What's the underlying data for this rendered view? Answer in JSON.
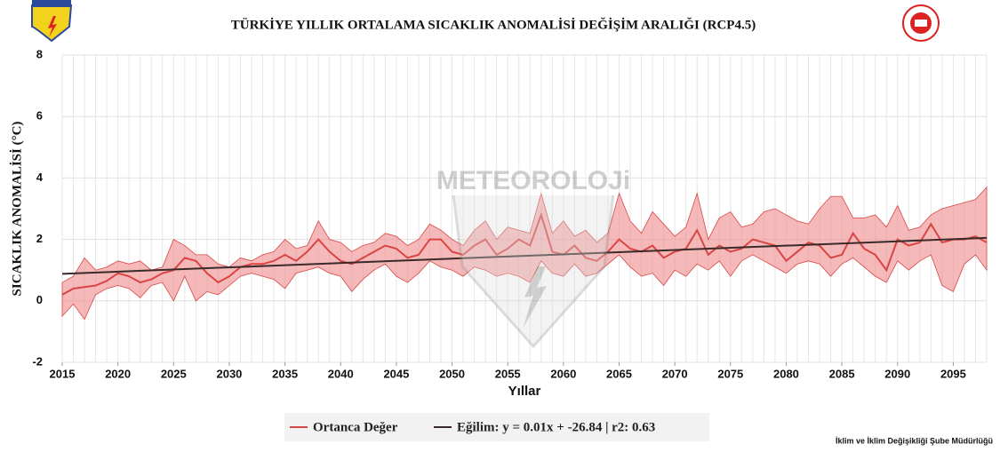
{
  "chart_data": {
    "type": "line",
    "title": "TÜRKİYE YILLIK ORTALAMA SICAKLIK ANOMALİSİ DEĞİŞİM ARALIĞI (RCP4.5)",
    "watermark": "METEOROLOJi",
    "x_label": "Yıllar",
    "y_label": "SICAKLIK ANOMALİSİ (°C)",
    "footer": "İklim ve İklim Değişikliği Şube Müdürlüğü",
    "x": [
      2015,
      2016,
      2017,
      2018,
      2019,
      2020,
      2021,
      2022,
      2023,
      2024,
      2025,
      2026,
      2027,
      2028,
      2029,
      2030,
      2031,
      2032,
      2033,
      2034,
      2035,
      2036,
      2037,
      2038,
      2039,
      2040,
      2041,
      2042,
      2043,
      2044,
      2045,
      2046,
      2047,
      2048,
      2049,
      2050,
      2051,
      2052,
      2053,
      2054,
      2055,
      2056,
      2057,
      2058,
      2059,
      2060,
      2061,
      2062,
      2063,
      2064,
      2065,
      2066,
      2067,
      2068,
      2069,
      2070,
      2071,
      2072,
      2073,
      2074,
      2075,
      2076,
      2077,
      2078,
      2079,
      2080,
      2081,
      2082,
      2083,
      2084,
      2085,
      2086,
      2087,
      2088,
      2089,
      2090,
      2091,
      2092,
      2093,
      2094,
      2095,
      2096,
      2097,
      2098
    ],
    "series": [
      {
        "name": "Ortanca Değer",
        "color": "#d94545",
        "values": [
          0.2,
          0.4,
          0.45,
          0.5,
          0.65,
          0.9,
          0.8,
          0.6,
          0.7,
          0.9,
          1.0,
          1.4,
          1.3,
          0.9,
          0.6,
          0.8,
          1.1,
          1.2,
          1.2,
          1.3,
          1.5,
          1.3,
          1.6,
          2.0,
          1.6,
          1.3,
          1.2,
          1.4,
          1.6,
          1.8,
          1.7,
          1.4,
          1.5,
          2.0,
          2.0,
          1.6,
          1.5,
          1.8,
          2.0,
          1.5,
          1.7,
          2.0,
          1.8,
          2.8,
          1.6,
          1.5,
          1.8,
          1.4,
          1.3,
          1.6,
          2.0,
          1.7,
          1.6,
          1.8,
          1.4,
          1.6,
          1.7,
          2.3,
          1.5,
          1.8,
          1.6,
          1.7,
          2.0,
          1.9,
          1.8,
          1.3,
          1.6,
          1.9,
          1.8,
          1.4,
          1.5,
          2.2,
          1.7,
          1.5,
          1.0,
          2.0,
          1.8,
          1.9,
          2.5,
          1.9,
          2.0,
          2.0,
          2.1,
          1.9
        ]
      },
      {
        "name": "Eğilim: y = 0.01x + -26.84 | r2: 0.63",
        "color": "#3a2a2a",
        "x": [
          2015,
          2098
        ],
        "values": [
          0.88,
          2.05
        ]
      }
    ],
    "band": {
      "color": "#f08a8a",
      "lower": [
        -0.5,
        -0.1,
        -0.6,
        0.2,
        0.4,
        0.5,
        0.4,
        0.1,
        0.5,
        0.6,
        0.0,
        0.8,
        0.0,
        0.3,
        0.2,
        0.5,
        0.8,
        0.9,
        0.8,
        0.7,
        0.4,
        0.9,
        1.0,
        1.1,
        0.9,
        0.8,
        0.3,
        0.7,
        1.0,
        1.2,
        0.8,
        0.6,
        0.9,
        1.3,
        1.1,
        1.0,
        0.8,
        1.1,
        1.0,
        0.8,
        0.9,
        0.8,
        0.6,
        1.3,
        0.9,
        0.8,
        1.2,
        0.8,
        0.9,
        1.2,
        1.5,
        1.1,
        0.8,
        0.9,
        0.5,
        1.0,
        0.8,
        1.2,
        1.0,
        1.3,
        0.8,
        1.3,
        1.5,
        1.3,
        1.1,
        0.9,
        1.2,
        1.3,
        1.2,
        0.8,
        1.2,
        1.4,
        1.1,
        0.8,
        0.6,
        1.3,
        1.0,
        1.3,
        1.5,
        0.5,
        0.3,
        1.2,
        1.5,
        1.0
      ],
      "upper": [
        0.6,
        0.8,
        1.4,
        1.0,
        1.1,
        1.3,
        1.2,
        1.3,
        1.0,
        1.1,
        2.0,
        1.8,
        1.5,
        1.5,
        1.2,
        1.1,
        1.4,
        1.3,
        1.5,
        1.6,
        2.0,
        1.7,
        1.8,
        2.6,
        2.0,
        1.9,
        1.6,
        1.8,
        1.9,
        2.2,
        2.1,
        1.8,
        2.0,
        2.5,
        2.3,
        2.0,
        1.8,
        2.3,
        2.6,
        2.0,
        2.4,
        2.3,
        2.2,
        3.5,
        2.2,
        2.6,
        2.1,
        2.3,
        1.9,
        2.2,
        3.5,
        2.6,
        2.2,
        2.9,
        2.5,
        2.1,
        2.4,
        3.5,
        2.0,
        2.7,
        2.9,
        2.4,
        2.5,
        2.9,
        3.0,
        2.8,
        2.6,
        2.5,
        3.0,
        3.4,
        3.4,
        2.7,
        2.7,
        2.8,
        2.4,
        3.1,
        2.3,
        2.4,
        2.8,
        3.0,
        3.1,
        3.2,
        3.3,
        3.7
      ]
    },
    "xlim": [
      2015,
      2098
    ],
    "ylim": [
      -2,
      8
    ],
    "xticks": [
      2015,
      2020,
      2025,
      2030,
      2035,
      2040,
      2045,
      2050,
      2055,
      2060,
      2065,
      2070,
      2075,
      2080,
      2085,
      2090,
      2095
    ],
    "yticks": [
      -2,
      0,
      2,
      4,
      6,
      8
    ],
    "grid": true,
    "legend": "bottom"
  }
}
